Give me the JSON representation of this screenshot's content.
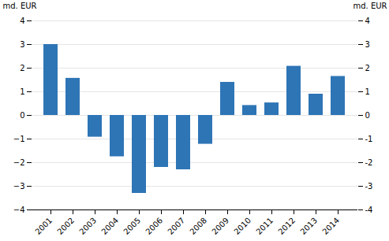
{
  "chart_data": {
    "type": "bar",
    "categories": [
      "2001",
      "2002",
      "2003",
      "2004",
      "2005",
      "2006",
      "2007",
      "2008",
      "2009",
      "2010",
      "2011",
      "2012",
      "2013",
      "2014"
    ],
    "values": [
      3.0,
      1.57,
      -0.92,
      -1.75,
      -3.3,
      -2.2,
      -2.3,
      -1.22,
      1.4,
      0.42,
      0.53,
      2.08,
      0.9,
      1.65
    ],
    "color": "#2e75b6",
    "ylabel": "md. EUR",
    "ylim": [
      -4,
      4
    ],
    "yticks": [
      -4,
      -3,
      -2,
      -1,
      0,
      1,
      2,
      3,
      4
    ],
    "y2label": "md. EUR",
    "y2lim": [
      -4,
      4
    ],
    "y2ticks": [
      -4,
      -3,
      -2,
      -1,
      0,
      1,
      2,
      3,
      4
    ],
    "grid": true
  }
}
